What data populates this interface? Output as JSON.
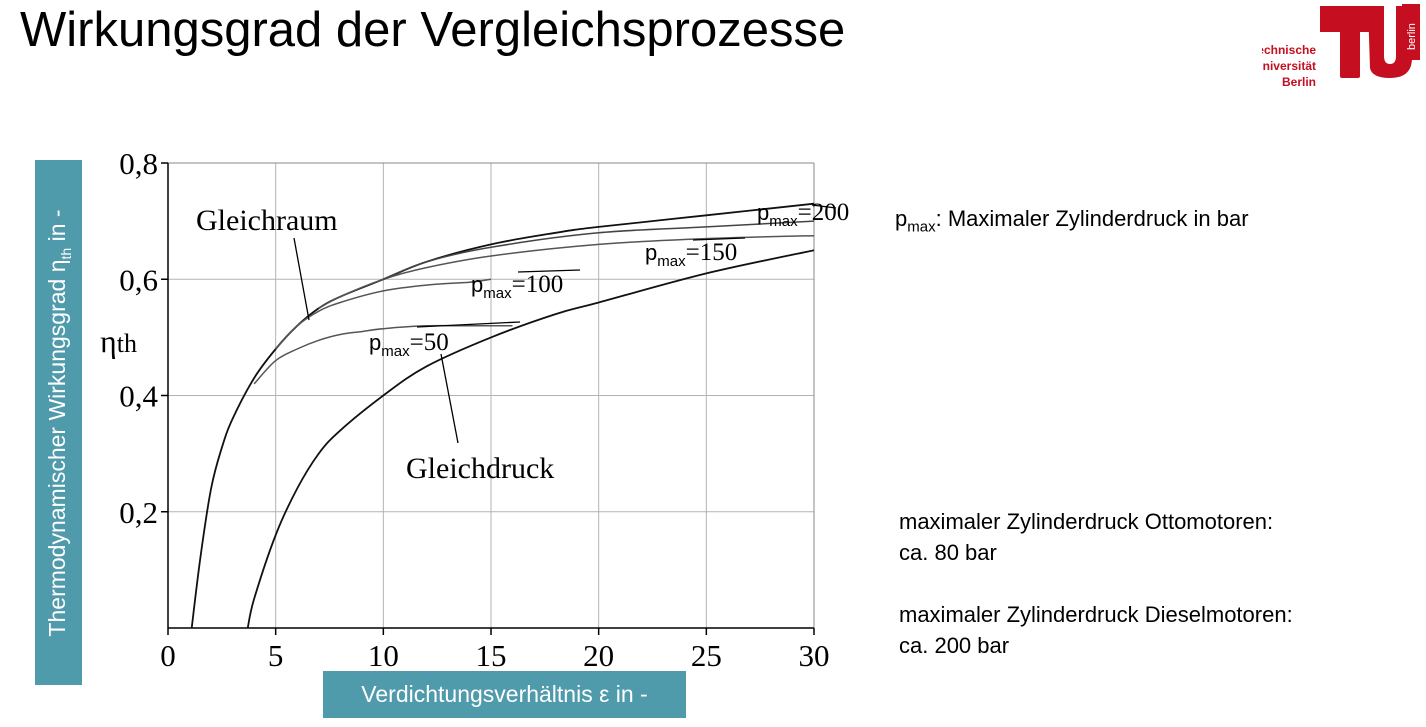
{
  "slide": {
    "title": "Wirkungsgrad der Vergleichsprozesse"
  },
  "logo": {
    "line1": "Technische",
    "line2": "Universität",
    "line3": "Berlin",
    "side_text": "berlin",
    "color": "#c50e1f"
  },
  "axis_labels": {
    "y_main": "Thermodynamischer Wirkungsgrad η",
    "y_sub": "th",
    "y_unit": " in -",
    "x": "Verdichtungsverhältnis ε in -",
    "y_symbol": "η",
    "y_symbol_sub": "th",
    "label_box_color": "#4f9aab"
  },
  "notes": {
    "pmax_symbol": "p",
    "pmax_sub": "max",
    "pmax_text": ": Maximaler Zylinderdruck in bar",
    "otto_line1": "maximaler Zylinderdruck Ottomotoren:",
    "otto_line2": "ca. 80 bar",
    "diesel_line1": "maximaler Zylinderdruck Dieselmotoren:",
    "diesel_line2": "ca. 200 bar"
  },
  "chart_data": {
    "type": "line",
    "xlim": [
      0,
      30
    ],
    "ylim": [
      0,
      0.8
    ],
    "x_ticks": [
      "0",
      "5",
      "10",
      "15",
      "20",
      "25",
      "30"
    ],
    "y_ticks": [
      "0,2",
      "0,4",
      "0,6",
      "0,8"
    ],
    "y_tick_values": [
      0.2,
      0.4,
      0.6,
      0.8
    ],
    "grid": true,
    "series": [
      {
        "name": "Gleichraum",
        "x": [
          1.1,
          1.5,
          2,
          2.5,
          3,
          4,
          5,
          6,
          7,
          8,
          10,
          12,
          15,
          18,
          20,
          25,
          30
        ],
        "y": [
          0.0,
          0.12,
          0.24,
          0.31,
          0.36,
          0.43,
          0.48,
          0.52,
          0.55,
          0.57,
          0.6,
          0.63,
          0.66,
          0.68,
          0.69,
          0.71,
          0.73
        ]
      },
      {
        "name": "Gleichdruck",
        "x": [
          3.7,
          4,
          5,
          6,
          7,
          8,
          10,
          12,
          15,
          18,
          20,
          25,
          30
        ],
        "y": [
          0.0,
          0.05,
          0.16,
          0.24,
          0.3,
          0.34,
          0.4,
          0.45,
          0.5,
          0.54,
          0.56,
          0.61,
          0.65
        ]
      },
      {
        "name": "pmax=50",
        "x": [
          4,
          5,
          6,
          7,
          8,
          9,
          10,
          12,
          14,
          16
        ],
        "y": [
          0.42,
          0.46,
          0.48,
          0.495,
          0.505,
          0.51,
          0.515,
          0.52,
          0.52,
          0.52
        ]
      },
      {
        "name": "pmax=100",
        "x": [
          5,
          6,
          7,
          8,
          10,
          12,
          14,
          15
        ],
        "y": [
          0.48,
          0.52,
          0.545,
          0.56,
          0.58,
          0.59,
          0.595,
          0.6
        ]
      },
      {
        "name": "pmax=150",
        "x": [
          7,
          8,
          10,
          12,
          15,
          20,
          25,
          30
        ],
        "y": [
          0.55,
          0.57,
          0.6,
          0.62,
          0.64,
          0.66,
          0.67,
          0.675
        ]
      },
      {
        "name": "pmax=200",
        "x": [
          10,
          12,
          15,
          20,
          25,
          30
        ],
        "y": [
          0.6,
          0.63,
          0.655,
          0.68,
          0.69,
          0.7
        ]
      }
    ],
    "annotations": [
      {
        "text": "Gleichraum"
      },
      {
        "text": "Gleichdruck"
      },
      {
        "text": "p",
        "sub": "max",
        "tail": "=50"
      },
      {
        "text": "p",
        "sub": "max",
        "tail": "=100"
      },
      {
        "text": "p",
        "sub": "max",
        "tail": "=150"
      },
      {
        "text": "p",
        "sub": "max",
        "tail": "=200"
      }
    ]
  }
}
